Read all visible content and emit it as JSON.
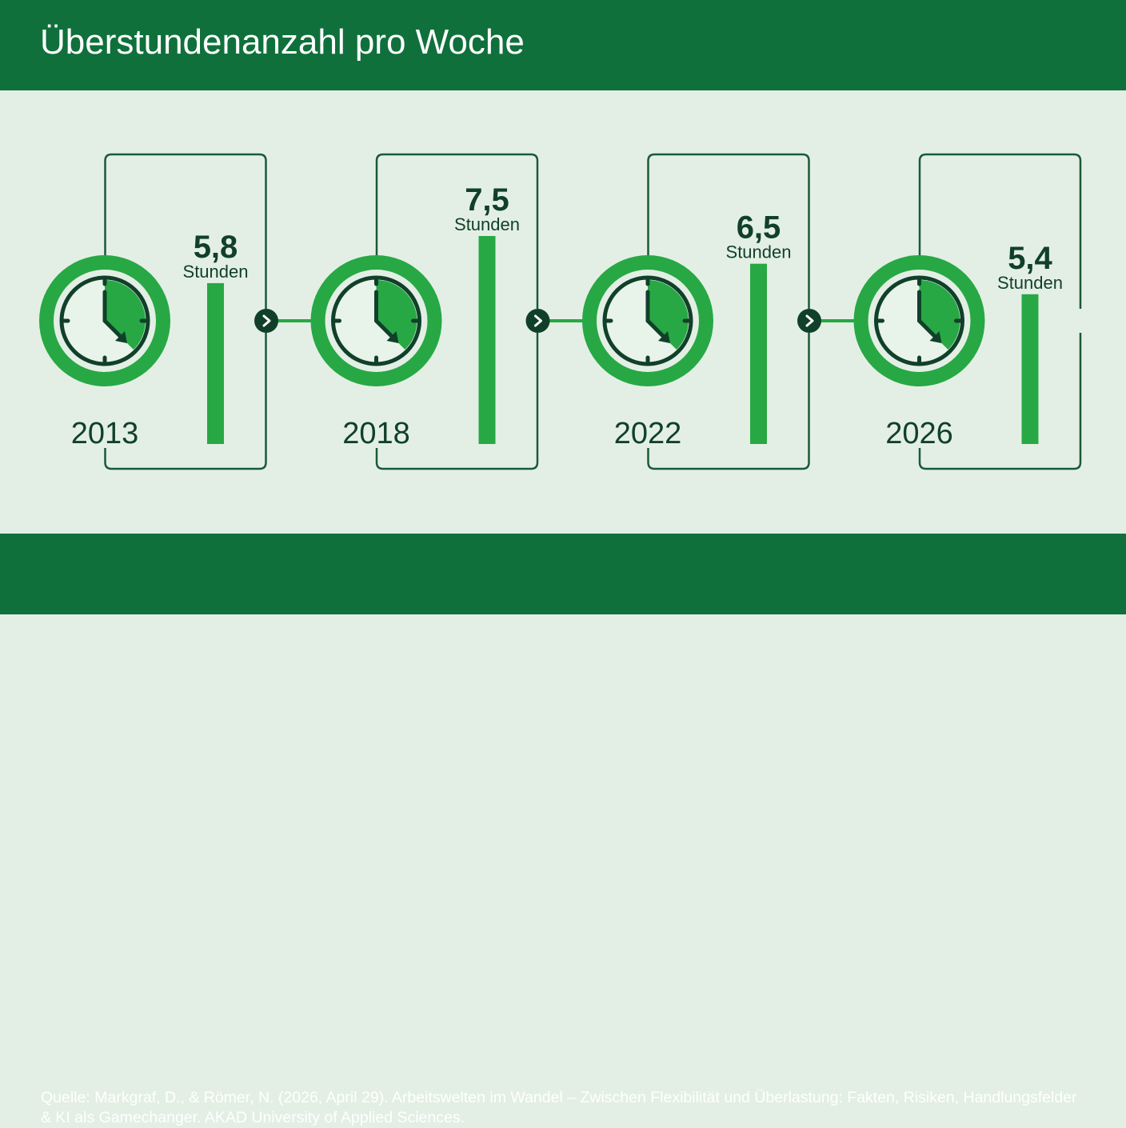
{
  "header": {
    "title": "Überstundenanzahl pro Woche"
  },
  "footer": {
    "source": "Quelle: Markgraf, D., & Römer, N. (2026, April 29). Arbeitswelten im Wandel – Zwischen Flexibilität und Überlastung: Fakten, Risiken, Handlungsfelder & KI als Gamechanger. AKAD University of Applied Sciences."
  },
  "colors": {
    "header_bg": "#0f703b",
    "background": "#e3efe5",
    "accent_green": "#27a844",
    "dark_green": "#11402a",
    "frame_line": "#1a5a37"
  },
  "icons": {
    "period": "clock-icon",
    "connector": "chevron-right-icon"
  },
  "chart_data": {
    "type": "bar",
    "title": "Überstundenanzahl pro Woche",
    "categories": [
      "2013",
      "2018",
      "2022",
      "2026"
    ],
    "values": [
      5.8,
      7.5,
      6.5,
      5.4
    ],
    "value_labels": [
      "5,8",
      "7,5",
      "6,5",
      "5,4"
    ],
    "unit": "Stunden",
    "grid": false
  }
}
